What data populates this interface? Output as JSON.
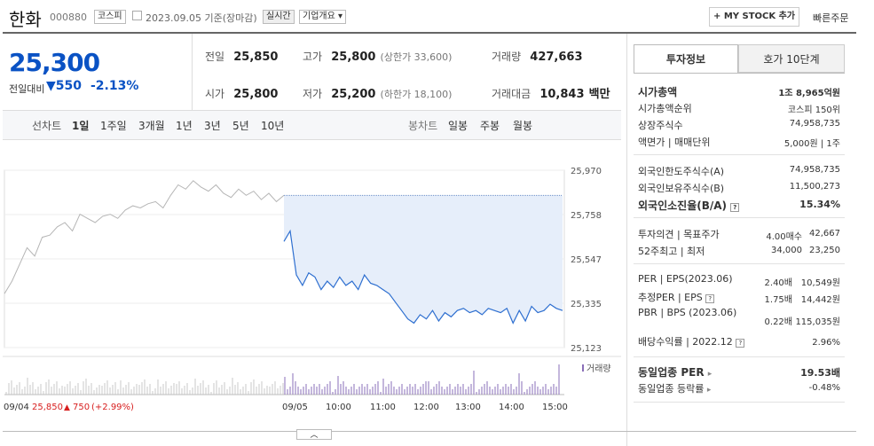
{
  "header": {
    "name": "한화",
    "code": "000880",
    "market": "코스피",
    "date": "2023.09.05",
    "date_suffix": "기준(장마감)",
    "realtime": "실시간",
    "company_info": "기업개요",
    "mystock": "MY STOCK 추가",
    "quick_order": "빠른주문"
  },
  "price": {
    "current": "25,300",
    "change_label": "전일대비",
    "change_abs": "550",
    "change_pct": "-2.13%",
    "rows": [
      {
        "label": "전일",
        "value": "25,850",
        "extra": ""
      },
      {
        "label": "고가",
        "value": "25,800",
        "extra": "(상한가 33,600)"
      },
      {
        "label": "거래량",
        "value": "427,663",
        "extra": ""
      },
      {
        "label": "시가",
        "value": "25,800",
        "extra": ""
      },
      {
        "label": "저가",
        "value": "25,200",
        "extra": "(하한가 18,100)"
      },
      {
        "label": "거래대금",
        "value": "10,843",
        "extra": "백만"
      }
    ]
  },
  "tabs": {
    "line_chart": "선차트",
    "periods": [
      "1일",
      "1주일",
      "3개월",
      "1년",
      "3년",
      "5년",
      "10년"
    ],
    "candle_chart": "봉차트",
    "candles": [
      "일봉",
      "주봉",
      "월봉"
    ]
  },
  "chart_data": {
    "type": "line",
    "y_ticks": [
      "25,970",
      "25,758",
      "25,547",
      "25,335",
      "25,123"
    ],
    "ylim": [
      25123,
      25970
    ],
    "x_ticks": [
      "09/04",
      "09/05",
      "10:00",
      "11:00",
      "12:00",
      "13:00",
      "14:00",
      "15:00"
    ],
    "prev_close": 25850,
    "today_series": [
      25630,
      25680,
      25470,
      25420,
      25480,
      25460,
      25400,
      25440,
      25410,
      25460,
      25420,
      25440,
      25400,
      25470,
      25430,
      25420,
      25400,
      25380,
      25340,
      25300,
      25260,
      25240,
      25280,
      25260,
      25300,
      25250,
      25290,
      25270,
      25300,
      25310,
      25290,
      25300,
      25280,
      25310,
      25300,
      25290,
      25310,
      25240,
      25300,
      25250,
      25320,
      25290,
      25300,
      25330,
      25310,
      25300
    ],
    "prev_series": [
      25380,
      25440,
      25520,
      25600,
      25560,
      25650,
      25660,
      25700,
      25720,
      25680,
      25760,
      25740,
      25720,
      25750,
      25760,
      25740,
      25780,
      25800,
      25790,
      25810,
      25820,
      25790,
      25850,
      25900,
      25880,
      25920,
      25890,
      25870,
      25900,
      25860,
      25840,
      25880,
      25850,
      25870,
      25830,
      25860,
      25820,
      25850
    ],
    "volume_label": "거래량",
    "footer_prev": "25,850",
    "footer_change": "750",
    "footer_pct": "(+2.99%)"
  },
  "side": {
    "tabs": [
      "투자정보",
      "호가 10단계"
    ],
    "rows_a": [
      {
        "label": "시가총액",
        "value": "1조 8,965억원",
        "bold": true
      },
      {
        "label": "시가총액순위",
        "value": "코스피 150위",
        "bold": false
      },
      {
        "label": "상장주식수",
        "value": "74,958,735",
        "bold": false
      },
      {
        "label": "액면가 | 매매단위",
        "value": "5,000원 | 1주",
        "bold": false
      }
    ],
    "rows_b": [
      {
        "label": "외국인한도주식수(A)",
        "value": "74,958,735",
        "bold": false
      },
      {
        "label": "외국인보유주식수(B)",
        "value": "11,500,273",
        "bold": false
      },
      {
        "label": "외국인소진율(B/A)",
        "value": "15.34%",
        "bold": true
      }
    ],
    "rows_c": [
      {
        "label": "투자의견 | 목표주가",
        "v1": "4.00매수",
        "v2": "42,667"
      },
      {
        "label": "52주최고 | 최저",
        "v1": "34,000",
        "v2": "23,250"
      }
    ],
    "rows_d": [
      {
        "label": "PER | EPS(2023.06)",
        "v1": "2.40배",
        "v2": "10,549원"
      },
      {
        "label": "추정PER | EPS",
        "v1": "1.75배",
        "v2": "14,442원"
      },
      {
        "label": "PBR | BPS (2023.06)",
        "v1": "0.22배",
        "v2": "115,035원"
      },
      {
        "label": "배당수익률 | 2022.12",
        "v1": "",
        "v2": "2.96%"
      }
    ],
    "rows_e": [
      {
        "label": "동일업종 PER",
        "value": "19.53배"
      },
      {
        "label": "동일업종 등락률",
        "value": "-0.48%"
      }
    ]
  }
}
